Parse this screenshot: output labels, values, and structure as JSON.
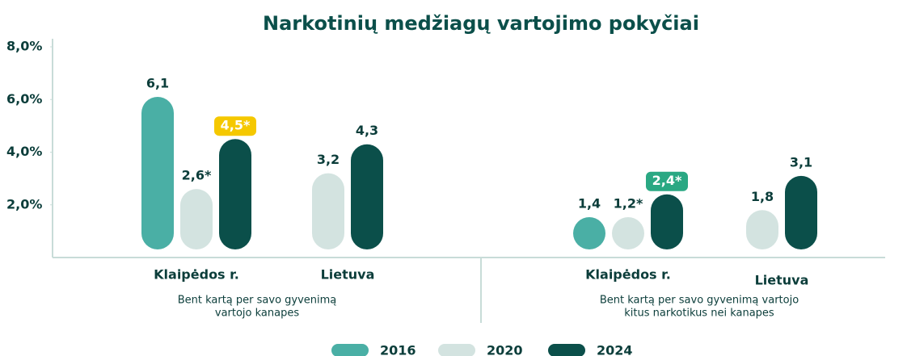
{
  "chart_data": {
    "type": "bar",
    "title": "Narkotinių medžiagų vartojimo pokyčiai",
    "categories": [
      "Klaipėdos r.",
      "Lietuva",
      "Klaipėdos r.",
      "Lietuva"
    ],
    "group_labels": [
      [
        "Bent kartą per savo gyvenimą",
        "vartojo kanapes"
      ],
      [
        "Bent kartą per savo gyvenimą vartojo",
        "kitus narkotikus nei kanapes"
      ]
    ],
    "series": [
      {
        "name": "2016",
        "color": "#4aafa5",
        "values": [
          6.1,
          null,
          1.4,
          null
        ],
        "value_labels": [
          "6,1",
          null,
          "1,4",
          null
        ]
      },
      {
        "name": "2020",
        "color": "#d3e3e0",
        "values": [
          2.6,
          3.2,
          1.2,
          1.8
        ],
        "value_labels": [
          "2,6*",
          "3,2",
          "1,2*",
          "1,8"
        ]
      },
      {
        "name": "2024",
        "color": "#0b4f4a",
        "values": [
          4.5,
          4.3,
          2.4,
          3.1
        ],
        "value_labels": [
          "4,5*",
          "4,3",
          "2,4*",
          "3,1"
        ]
      }
    ],
    "ylim": [
      0,
      8
    ],
    "yticks": [
      {
        "value": 2,
        "label": "2,0%"
      },
      {
        "value": 4,
        "label": "4,0%"
      },
      {
        "value": 6,
        "label": "6,0%"
      },
      {
        "value": 8,
        "label": "8,0%"
      }
    ],
    "grid": false
  }
}
